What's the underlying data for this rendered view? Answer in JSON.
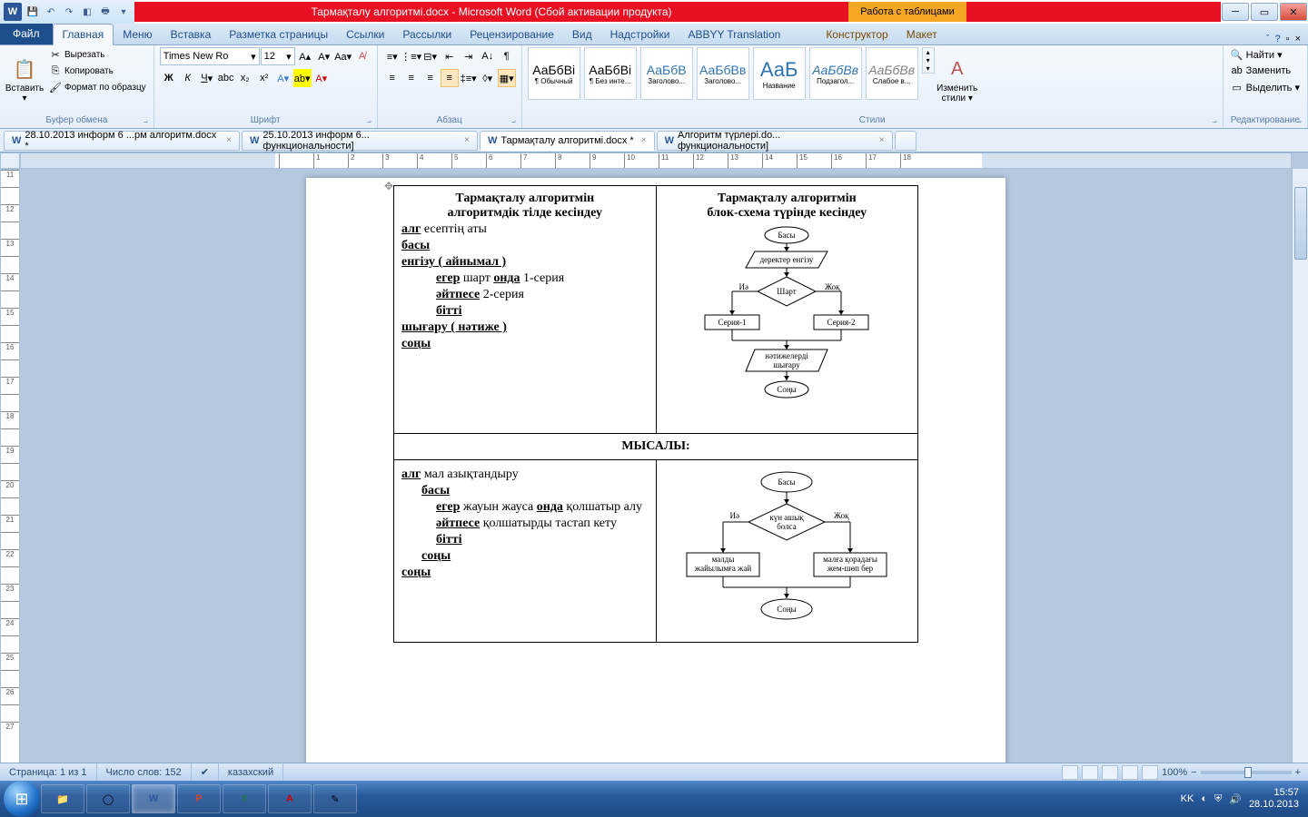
{
  "title_bar": {
    "app_title": "Тармақталу алгоритмі.docx - Microsoft Word (Сбой активации продукта)",
    "table_tools": "Работа с таблицами"
  },
  "ribbon_tabs": {
    "file": "Файл",
    "tabs": [
      "Главная",
      "Меню",
      "Вставка",
      "Разметка страницы",
      "Ссылки",
      "Рассылки",
      "Рецензирование",
      "Вид",
      "Надстройки",
      "ABBYY Translation"
    ],
    "tool_tabs": [
      "Конструктор",
      "Макет"
    ]
  },
  "ribbon": {
    "clipboard": {
      "paste": "Вставить",
      "cut": "Вырезать",
      "copy": "Копировать",
      "format": "Формат по образцу",
      "label": "Буфер обмена"
    },
    "font": {
      "name": "Times New Ro",
      "size": "12",
      "label": "Шрифт"
    },
    "paragraph": {
      "label": "Абзац"
    },
    "styles": {
      "items": [
        {
          "sample": "АаБбВі",
          "name": "¶ Обычный"
        },
        {
          "sample": "АаБбВі",
          "name": "¶ Без инте..."
        },
        {
          "sample": "АаБбВ",
          "name": "Заголово...",
          "color": "#2e74b5"
        },
        {
          "sample": "АаБбВв",
          "name": "Заголово...",
          "color": "#2e74b5"
        },
        {
          "sample": "АаБ",
          "name": "Название",
          "big": true,
          "color": "#2e74b5"
        },
        {
          "sample": "АаБбВв",
          "name": "Подзагол...",
          "color": "#2e74b5",
          "italic": true
        },
        {
          "sample": "АаБбВв",
          "name": "Слабое в...",
          "color": "#7f7f7f",
          "italic": true
        }
      ],
      "change": "Изменить стили ▾",
      "label": "Стили"
    },
    "editing": {
      "find": "Найти ▾",
      "replace": "Заменить",
      "select": "Выделить ▾",
      "label": "Редактирование"
    }
  },
  "doc_tabs": [
    {
      "icon": "W",
      "name": "28.10.2013 информ 6 ...рм  алгоритм.docx *",
      "active": false
    },
    {
      "icon": "W",
      "name": "25.10.2013 информ 6... функциональности]",
      "active": false
    },
    {
      "icon": "W",
      "name": "Тармақталу алгоритмі.docx *",
      "active": true
    },
    {
      "icon": "W",
      "name": "Алгоритм түрлері.do... функциональности]",
      "active": false
    }
  ],
  "ruler": {
    "hticks": [
      "",
      "1",
      "2",
      "3",
      "4",
      "5",
      "6",
      "7",
      "8",
      "9",
      "10",
      "11",
      "12",
      "13",
      "14",
      "15",
      "16",
      "17",
      "18"
    ],
    "vticks": [
      "11",
      "",
      "12",
      "",
      "13",
      "",
      "14",
      "",
      "15",
      "",
      "16",
      "",
      "17",
      "",
      "18",
      "",
      "19",
      "",
      "20",
      "",
      "21",
      "",
      "22",
      "",
      "23",
      "",
      "24",
      "",
      "25",
      "",
      "26",
      "",
      "27"
    ]
  },
  "document": {
    "cell1_title1": "Тармақталу алгоритмін",
    "cell1_title2": "алгоритмдік тілде кесіндеу",
    "cell1_lines": [
      {
        "t": "алг",
        "suf": "   есептің аты",
        "kw": true
      },
      {
        "t": "басы",
        "kw": true
      },
      {
        "t": "енгізу ( айнымал )",
        "kw": true
      },
      {
        "pre": "егер",
        "suf": " шарт   ",
        "mid": "онда",
        "end": " 1-серия",
        "ind": 2
      },
      {
        "pre": "әйтпесе",
        "end": " 2-серия",
        "ind": 2
      },
      {
        "pre": "бітті",
        "ind": 2
      },
      {
        "t": "шығару ( нәтиже )",
        "kw": true
      },
      {
        "t": "соңы",
        "kw": true
      }
    ],
    "cell2_title1": "Тармақталу алгоритмін",
    "cell2_title2": "блок-схема түрінде кесіндеу",
    "flow1": {
      "start": "Басы",
      "input": "деректер енгізу",
      "cond": "Шарт",
      "yes": "Иә",
      "no": "Жоқ",
      "left": "Серия-1",
      "right": "Серия-2",
      "output": "нәтижелерді шығару",
      "end": "Соңы",
      "stroke": "#000",
      "fill": "#fff",
      "font": "9"
    },
    "example_title": "МЫСАЛЫ:",
    "cell3_lines": [
      {
        "t": "алг",
        "suf": " мал азықтандыру",
        "kw": true
      },
      {
        "pre": "басы",
        "ind": 1,
        "kw": true
      },
      {
        "pre": "егер",
        "suf": " жауын жауса   ",
        "mid": "онда",
        "end": " қолшатыр алу",
        "ind": 2
      },
      {
        "pre": "әйтпесе",
        "end": " қолшатырды тастап кету",
        "ind": 2
      },
      {
        "pre": "бітті",
        "ind": 2
      },
      {
        "pre": "соңы",
        "ind": 1,
        "kw": true
      },
      {
        "t": "соңы",
        "kw": true
      }
    ],
    "flow2": {
      "start": "Басы",
      "cond": "күн ашық болса",
      "yes": "Иә",
      "no": "Жоқ",
      "left": "малды жайылымға жай",
      "right": "малға қорадағы жем-шөп бер",
      "end": "Соңы",
      "stroke": "#000",
      "fill": "#fff",
      "font": "9"
    }
  },
  "status": {
    "page": "Страница: 1 из 1",
    "words": "Число слов: 152",
    "lang": "казахский",
    "zoom": "100%"
  },
  "taskbar": {
    "lang": "KK",
    "time": "15:57",
    "date": "28.10.2013"
  }
}
